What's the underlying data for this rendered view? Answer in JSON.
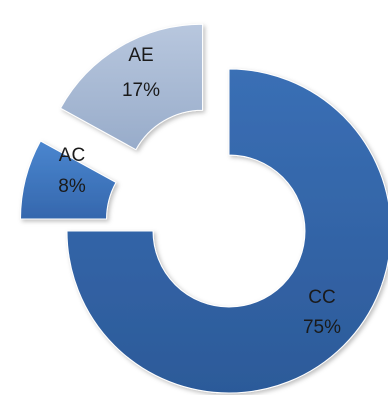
{
  "chart_data": {
    "type": "pie",
    "style": "exploded-donut",
    "title": "",
    "slices": [
      {
        "label": "CC",
        "value": 75,
        "value_label": "75%",
        "color": "#3163a6"
      },
      {
        "label": "AC",
        "value": 8,
        "value_label": "8%",
        "color": "#3b74bf"
      },
      {
        "label": "AE",
        "value": 17,
        "value_label": "17%",
        "color": "#a7b9d5"
      }
    ],
    "legend": "none"
  }
}
